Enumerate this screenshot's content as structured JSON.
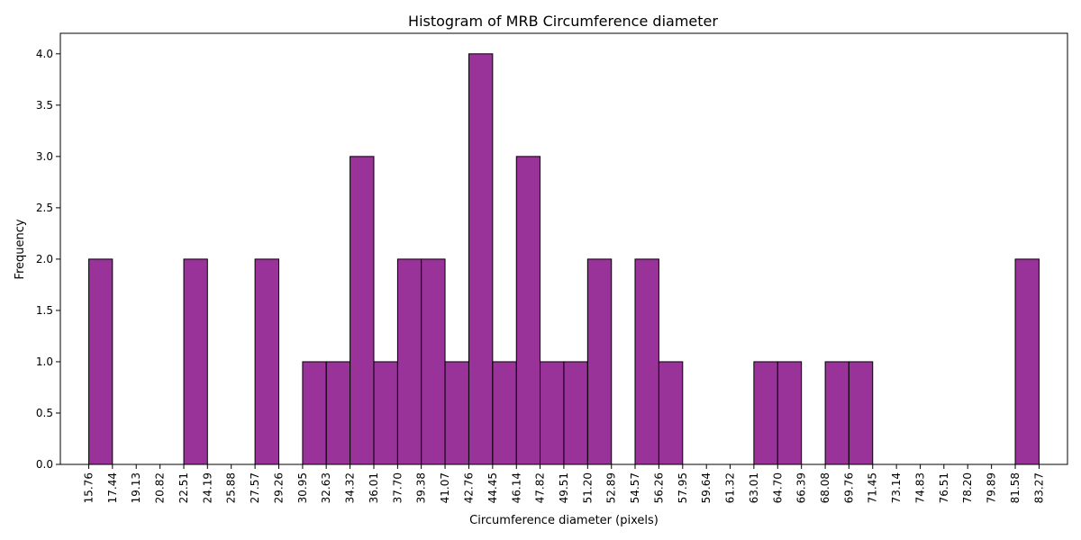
{
  "chart_data": {
    "type": "bar",
    "title": "Histogram of MRB Circumference diameter",
    "xlabel": "Circumference diameter (pixels)",
    "ylabel": "Frequency",
    "bin_edges": [
      15.76,
      17.44,
      19.13,
      20.82,
      22.51,
      24.19,
      25.88,
      27.57,
      29.26,
      30.95,
      32.63,
      34.32,
      36.01,
      37.7,
      39.38,
      41.07,
      42.76,
      44.45,
      46.14,
      47.82,
      49.51,
      51.2,
      52.89,
      54.57,
      56.26,
      57.95,
      59.64,
      61.32,
      63.01,
      64.7,
      66.39,
      68.08,
      69.76,
      71.45,
      73.14,
      74.83,
      76.51,
      78.2,
      79.89,
      81.58,
      83.27
    ],
    "x_tick_labels": [
      "15.76",
      "17.44",
      "19.13",
      "20.82",
      "22.51",
      "24.19",
      "25.88",
      "27.57",
      "29.26",
      "30.95",
      "32.63",
      "34.32",
      "36.01",
      "37.70",
      "39.38",
      "41.07",
      "42.76",
      "44.45",
      "46.14",
      "47.82",
      "49.51",
      "51.20",
      "52.89",
      "54.57",
      "56.26",
      "57.95",
      "59.64",
      "61.32",
      "63.01",
      "64.70",
      "66.39",
      "68.08",
      "69.76",
      "71.45",
      "73.14",
      "74.83",
      "76.51",
      "78.20",
      "79.89",
      "81.58",
      "83.27"
    ],
    "values": [
      2,
      0,
      0,
      0,
      2,
      0,
      0,
      2,
      0,
      1,
      1,
      3,
      1,
      2,
      2,
      1,
      4,
      1,
      3,
      1,
      1,
      2,
      0,
      2,
      1,
      0,
      0,
      0,
      1,
      1,
      0,
      1,
      1,
      0,
      0,
      0,
      0,
      0,
      0,
      2
    ],
    "y_ticks": [
      0.0,
      0.5,
      1.0,
      1.5,
      2.0,
      2.5,
      3.0,
      3.5,
      4.0
    ],
    "y_tick_labels": [
      "0.0",
      "0.5",
      "1.0",
      "1.5",
      "2.0",
      "2.5",
      "3.0",
      "3.5",
      "4.0"
    ],
    "ylim": [
      0,
      4.2
    ],
    "xlim": [
      13.74,
      85.29
    ],
    "grid": false,
    "bar_color": "#800080",
    "edge_color": "#000000"
  }
}
